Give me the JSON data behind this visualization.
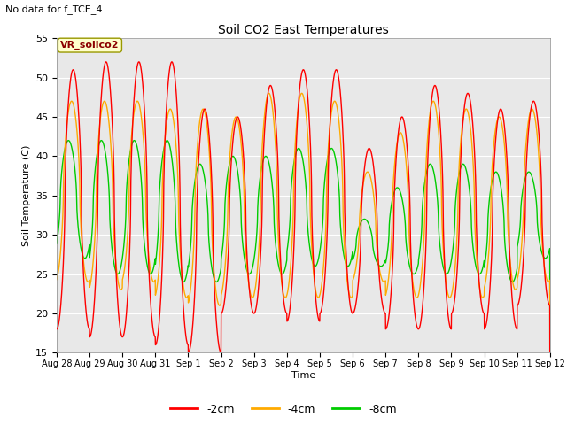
{
  "title": "Soil CO2 East Temperatures",
  "subtitle": "No data for f_TCE_4",
  "ylabel": "Soil Temperature (C)",
  "xlabel": "Time",
  "legend_label": "VR_soilco2",
  "ylim": [
    15,
    55
  ],
  "series_labels": [
    "-2cm",
    "-4cm",
    "-8cm"
  ],
  "series_colors": [
    "#ff0000",
    "#ffaa00",
    "#00cc00"
  ],
  "background_color": "#e8e8e8",
  "x_tick_labels": [
    "Aug 28",
    "Aug 29",
    "Aug 30",
    "Aug 31",
    "Sep 1",
    "Sep 2",
    "Sep 3",
    "Sep 4",
    "Sep 5",
    "Sep 6",
    "Sep 7",
    "Sep 8",
    "Sep 9",
    "Sep 10",
    "Sep 11",
    "Sep 12"
  ],
  "params_2cm": [
    {
      "min": 18,
      "max": 51
    },
    {
      "min": 17,
      "max": 52
    },
    {
      "min": 17,
      "max": 52
    },
    {
      "min": 16,
      "max": 52
    },
    {
      "min": 15,
      "max": 46
    },
    {
      "min": 20,
      "max": 45
    },
    {
      "min": 20,
      "max": 49
    },
    {
      "min": 19,
      "max": 51
    },
    {
      "min": 20,
      "max": 51
    },
    {
      "min": 20,
      "max": 41
    },
    {
      "min": 18,
      "max": 45
    },
    {
      "min": 18,
      "max": 49
    },
    {
      "min": 20,
      "max": 48
    },
    {
      "min": 18,
      "max": 46
    },
    {
      "min": 21,
      "max": 47
    }
  ],
  "params_4cm": [
    {
      "min": 24,
      "max": 47
    },
    {
      "min": 23,
      "max": 47
    },
    {
      "min": 24,
      "max": 47
    },
    {
      "min": 22,
      "max": 46
    },
    {
      "min": 21,
      "max": 46
    },
    {
      "min": 22,
      "max": 45
    },
    {
      "min": 22,
      "max": 48
    },
    {
      "min": 22,
      "max": 48
    },
    {
      "min": 22,
      "max": 47
    },
    {
      "min": 24,
      "max": 38
    },
    {
      "min": 22,
      "max": 43
    },
    {
      "min": 22,
      "max": 47
    },
    {
      "min": 22,
      "max": 46
    },
    {
      "min": 23,
      "max": 45
    },
    {
      "min": 24,
      "max": 46
    }
  ],
  "params_8cm": [
    {
      "min": 27,
      "max": 42
    },
    {
      "min": 25,
      "max": 42
    },
    {
      "min": 25,
      "max": 42
    },
    {
      "min": 24,
      "max": 42
    },
    {
      "min": 24,
      "max": 39
    },
    {
      "min": 25,
      "max": 40
    },
    {
      "min": 25,
      "max": 40
    },
    {
      "min": 26,
      "max": 41
    },
    {
      "min": 26,
      "max": 41
    },
    {
      "min": 26,
      "max": 32
    },
    {
      "min": 25,
      "max": 36
    },
    {
      "min": 25,
      "max": 39
    },
    {
      "min": 25,
      "max": 39
    },
    {
      "min": 24,
      "max": 38
    },
    {
      "min": 27,
      "max": 38
    }
  ],
  "phase_2": -1.5707963,
  "phase_4": -1.2707963,
  "phase_8": -0.6707963,
  "n_days": 15,
  "points_per_day": 200
}
